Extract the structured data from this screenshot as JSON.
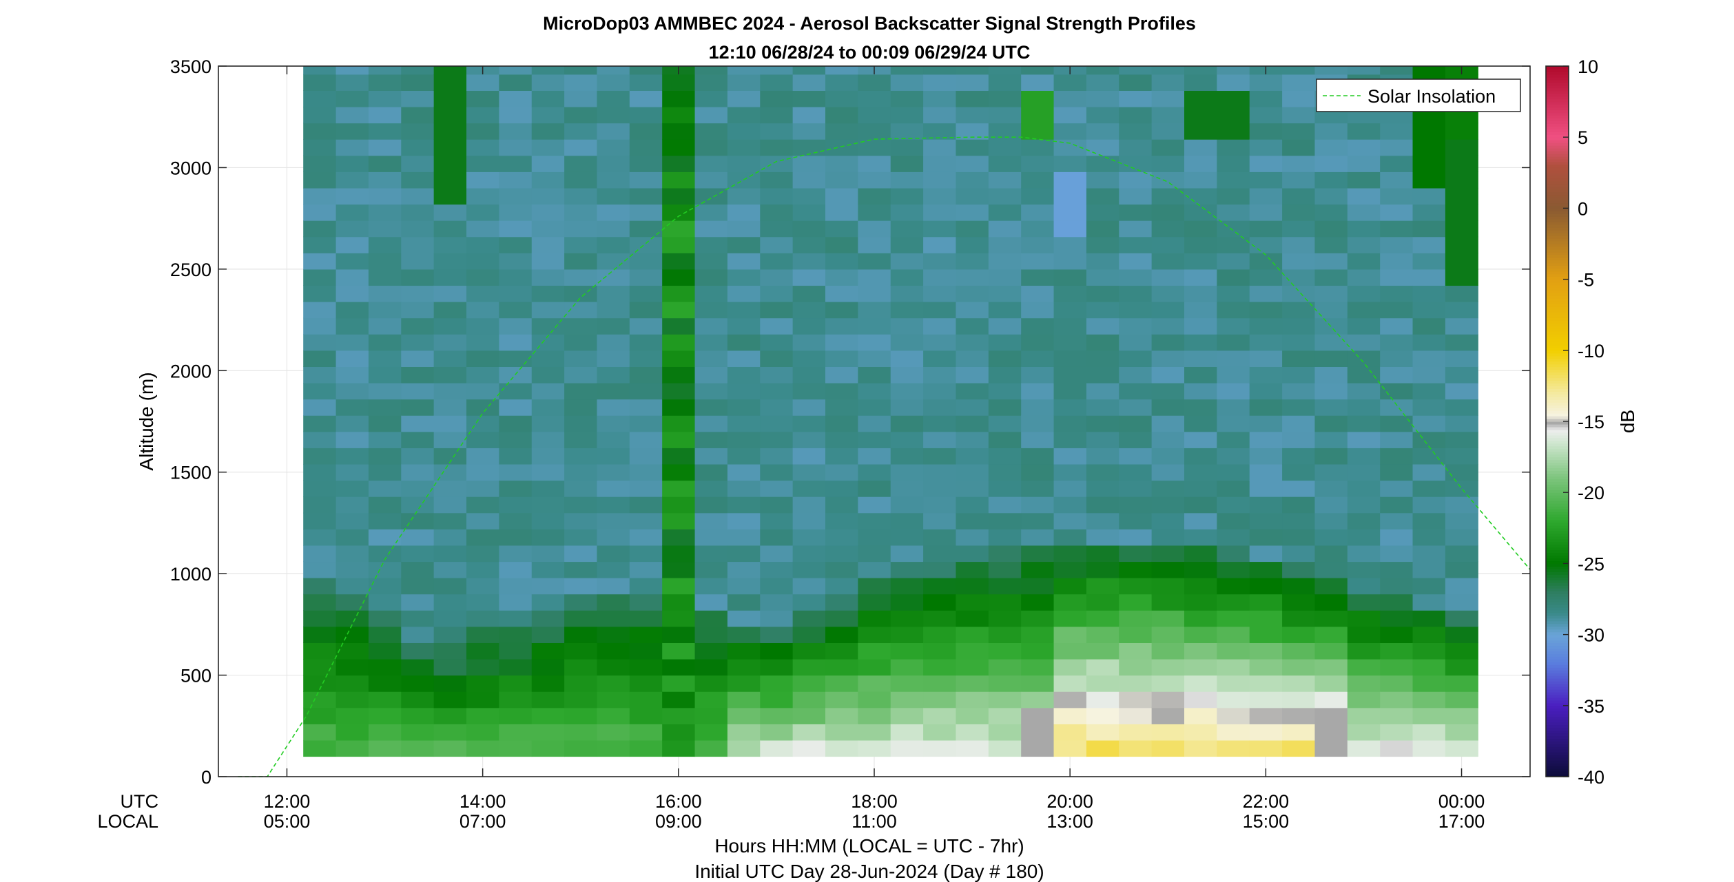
{
  "chart_data": {
    "type": "heatmap",
    "title": "MicroDop03 AMMBEC 2024 - Aerosol Backscatter Signal Strength Profiles",
    "subtitle": "12:10 06/28/24 to 00:09 06/29/24  UTC",
    "ylabel": "Altitude (m)",
    "xlabel": "Hours HH:MM  (LOCAL = UTC - 7hr)",
    "footer": "Initial UTC Day 28-Jun-2024 (Day # 180)",
    "x_row_labels": {
      "utc": "UTC",
      "local": "LOCAL"
    },
    "ylim": [
      0,
      3500
    ],
    "xlim_hours": [
      11.3,
      24.7
    ],
    "y_ticks": [
      "0",
      "500",
      "1000",
      "1500",
      "2000",
      "2500",
      "3000",
      "3500"
    ],
    "y_tick_values": [
      0,
      500,
      1000,
      1500,
      2000,
      2500,
      3000,
      3500
    ],
    "x_ticks_utc": [
      "12:00",
      "14:00",
      "16:00",
      "18:00",
      "20:00",
      "22:00",
      "00:00"
    ],
    "x_ticks_local": [
      "05:00",
      "07:00",
      "09:00",
      "11:00",
      "13:00",
      "15:00",
      "17:00"
    ],
    "x_tick_hours": [
      12,
      14,
      16,
      18,
      20,
      22,
      24
    ],
    "grid": true,
    "colorbar": {
      "label": "dB",
      "range": [
        -40,
        10
      ],
      "ticks": [
        "10",
        "5",
        "0",
        "-5",
        "-10",
        "-15",
        "-20",
        "-25",
        "-30",
        "-35",
        "-40"
      ],
      "tick_values": [
        10,
        5,
        0,
        -5,
        -10,
        -15,
        -20,
        -25,
        -30,
        -35,
        -40
      ],
      "color_stops": [
        {
          "db": -40,
          "color": "#0c0c38"
        },
        {
          "db": -35,
          "color": "#4a1ec0"
        },
        {
          "db": -32,
          "color": "#5a7ede"
        },
        {
          "db": -30,
          "color": "#6aa4d8"
        },
        {
          "db": -28.5,
          "color": "#3a8a8a"
        },
        {
          "db": -27,
          "color": "#2e7e60"
        },
        {
          "db": -25,
          "color": "#007800"
        },
        {
          "db": -22,
          "color": "#2ea82e"
        },
        {
          "db": -19,
          "color": "#7cc47c"
        },
        {
          "db": -16.5,
          "color": "#cfe6cf"
        },
        {
          "db": -15.6,
          "color": "#eeeeee"
        },
        {
          "db": -15.1,
          "color": "#a8a8a8"
        },
        {
          "db": -14.6,
          "color": "#f6f3e2"
        },
        {
          "db": -13,
          "color": "#f4eaa0"
        },
        {
          "db": -10,
          "color": "#f2cf00"
        },
        {
          "db": -5,
          "color": "#e2a012"
        },
        {
          "db": 0,
          "color": "#8a5a32"
        },
        {
          "db": 3,
          "color": "#b0503e"
        },
        {
          "db": 5,
          "color": "#f05082"
        },
        {
          "db": 10,
          "color": "#b00a2c"
        }
      ]
    },
    "heatmap": {
      "t_start_hour": 12.167,
      "t_end_hour": 24.167,
      "n_time_bins": 36,
      "z_bottom_m": 100,
      "z_top_m": 3500,
      "dz_m": 80,
      "units": "dB"
    },
    "series": [
      {
        "name": "Solar Insolation",
        "style": "dashed",
        "color": "#22cc22",
        "x_hours": [
          11.5,
          11.8,
          12.2,
          13.0,
          14.0,
          15.0,
          16.0,
          17.0,
          18.0,
          19.0,
          19.5,
          20.0,
          21.0,
          22.0,
          23.0,
          24.0,
          24.7
        ],
        "y_altitude": [
          0,
          0,
          300,
          1070,
          1790,
          2360,
          2760,
          3030,
          3140,
          3150,
          3150,
          3120,
          2930,
          2570,
          2040,
          1420,
          1020
        ]
      }
    ],
    "legend": {
      "entries": [
        "Solar Insolation"
      ],
      "placement": "top-right"
    }
  }
}
